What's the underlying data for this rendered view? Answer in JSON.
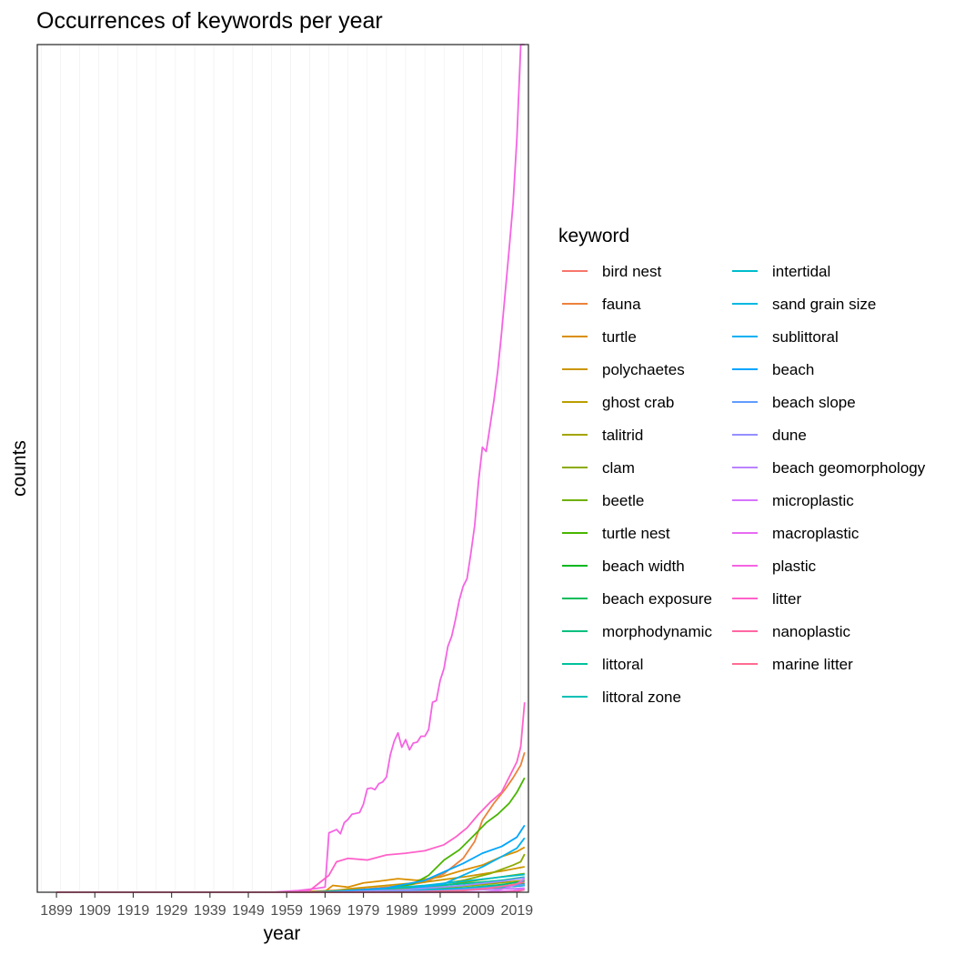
{
  "chart_data": {
    "type": "line",
    "title": "Occurrences of keywords per year",
    "xlabel": "year",
    "ylabel": "counts",
    "xlim": [
      1894,
      2022
    ],
    "ylim": [
      0,
      100
    ],
    "x_ticks": [
      1899,
      1909,
      1919,
      1929,
      1939,
      1949,
      1959,
      1969,
      1979,
      1989,
      1999,
      2009,
      2019
    ],
    "x_tick_labels": [
      "1899",
      "1909",
      "1919",
      "1929",
      "1939",
      "1949",
      "1959",
      "1969",
      "1979",
      "1989",
      "1999",
      "2009",
      "2019"
    ],
    "y_ticks_visible": false,
    "grid": "vertical",
    "legend": {
      "title": "keyword",
      "placement": "right",
      "columns": 2
    },
    "x_range": [
      1899,
      2021
    ],
    "series": [
      {
        "name": "bird nest",
        "color": "#F8766D",
        "points": [
          [
            1899,
            0
          ],
          [
            1969,
            0
          ],
          [
            1990,
            0.1
          ],
          [
            2000,
            0.2
          ],
          [
            2010,
            0.4
          ],
          [
            2021,
            0.8
          ]
        ]
      },
      {
        "name": "fauna",
        "color": "#EC823C",
        "points": [
          [
            1899,
            0
          ],
          [
            1960,
            0
          ],
          [
            1970,
            0.2
          ],
          [
            1980,
            0.4
          ],
          [
            1990,
            0.8
          ],
          [
            1995,
            1.2
          ],
          [
            2000,
            2.2
          ],
          [
            2005,
            4
          ],
          [
            2008,
            6
          ],
          [
            2010,
            8.5
          ],
          [
            2013,
            10.5
          ],
          [
            2016,
            12.2
          ],
          [
            2018,
            13.5
          ],
          [
            2020,
            15
          ],
          [
            2021,
            16.5
          ]
        ]
      },
      {
        "name": "turtle",
        "color": "#DA8F00",
        "points": [
          [
            1899,
            0
          ],
          [
            1960,
            0
          ],
          [
            1969,
            0.1
          ],
          [
            1971,
            0.8
          ],
          [
            1975,
            0.6
          ],
          [
            1979,
            1.1
          ],
          [
            1983,
            1.3
          ],
          [
            1988,
            1.6
          ],
          [
            1993,
            1.4
          ],
          [
            1999,
            1.8
          ],
          [
            2005,
            2.6
          ],
          [
            2010,
            3.2
          ],
          [
            2015,
            4.2
          ],
          [
            2019,
            4.8
          ],
          [
            2021,
            5.3
          ]
        ]
      },
      {
        "name": "polychaetes",
        "color": "#CC9600",
        "points": [
          [
            1899,
            0
          ],
          [
            1968,
            0
          ],
          [
            1975,
            0.4
          ],
          [
            1985,
            0.8
          ],
          [
            1995,
            1.2
          ],
          [
            2005,
            1.8
          ],
          [
            2015,
            2.5
          ],
          [
            2021,
            3
          ]
        ]
      },
      {
        "name": "ghost crab",
        "color": "#BA9E00",
        "points": [
          [
            1899,
            0
          ],
          [
            1980,
            0
          ],
          [
            1995,
            0.1
          ],
          [
            2005,
            0.3
          ],
          [
            2015,
            0.6
          ],
          [
            2021,
            0.9
          ]
        ]
      },
      {
        "name": "talitrid",
        "color": "#A3A500",
        "points": [
          [
            1899,
            0
          ],
          [
            1970,
            0
          ],
          [
            1985,
            0.2
          ],
          [
            2000,
            0.5
          ],
          [
            2010,
            0.9
          ],
          [
            2021,
            1.4
          ]
        ]
      },
      {
        "name": "clam",
        "color": "#8CAB00",
        "points": [
          [
            1899,
            0
          ],
          [
            1970,
            0
          ],
          [
            1985,
            0.3
          ],
          [
            1995,
            0.7
          ],
          [
            2005,
            1.4
          ],
          [
            2012,
            2.2
          ],
          [
            2018,
            3.2
          ],
          [
            2020,
            3.6
          ],
          [
            2021,
            4.5
          ]
        ]
      },
      {
        "name": "beetle",
        "color": "#6FB000",
        "points": [
          [
            1899,
            0
          ],
          [
            1975,
            0
          ],
          [
            1990,
            0.3
          ],
          [
            2000,
            0.8
          ],
          [
            2010,
            1.5
          ],
          [
            2021,
            2.2
          ]
        ]
      },
      {
        "name": "turtle nest",
        "color": "#49B500",
        "points": [
          [
            1899,
            0
          ],
          [
            1975,
            0
          ],
          [
            1985,
            0.3
          ],
          [
            1992,
            1
          ],
          [
            1996,
            2
          ],
          [
            2000,
            3.8
          ],
          [
            2004,
            5
          ],
          [
            2008,
            6.8
          ],
          [
            2011,
            8.2
          ],
          [
            2014,
            9.2
          ],
          [
            2017,
            10.5
          ],
          [
            2019,
            11.8
          ],
          [
            2021,
            13.5
          ]
        ]
      },
      {
        "name": "beach width",
        "color": "#00B81F",
        "points": [
          [
            1899,
            0
          ],
          [
            1980,
            0
          ],
          [
            2000,
            0.2
          ],
          [
            2010,
            0.5
          ],
          [
            2021,
            1
          ]
        ]
      },
      {
        "name": "beach exposure",
        "color": "#00BC59",
        "points": [
          [
            1899,
            0
          ],
          [
            1980,
            0
          ],
          [
            2000,
            0.2
          ],
          [
            2010,
            0.4
          ],
          [
            2021,
            0.8
          ]
        ]
      },
      {
        "name": "morphodynamic",
        "color": "#00BF7D",
        "points": [
          [
            1899,
            0
          ],
          [
            1980,
            0
          ],
          [
            1995,
            0.2
          ],
          [
            2005,
            0.5
          ],
          [
            2015,
            0.9
          ],
          [
            2021,
            1.3
          ]
        ]
      },
      {
        "name": "littoral",
        "color": "#00C19C",
        "points": [
          [
            1899,
            0
          ],
          [
            1965,
            0
          ],
          [
            1980,
            0.3
          ],
          [
            1995,
            0.7
          ],
          [
            2005,
            1
          ],
          [
            2015,
            1.4
          ],
          [
            2021,
            1.8
          ]
        ]
      },
      {
        "name": "littoral zone",
        "color": "#00C0B6",
        "points": [
          [
            1899,
            0
          ],
          [
            1970,
            0
          ],
          [
            1990,
            0.2
          ],
          [
            2005,
            0.5
          ],
          [
            2021,
            0.9
          ]
        ]
      },
      {
        "name": "intertidal",
        "color": "#00BDCC",
        "points": [
          [
            1899,
            0
          ],
          [
            1965,
            0
          ],
          [
            1980,
            0.3
          ],
          [
            1995,
            0.8
          ],
          [
            2005,
            1.3
          ],
          [
            2015,
            1.8
          ],
          [
            2021,
            2.1
          ]
        ]
      },
      {
        "name": "sand grain size",
        "color": "#00B8E0",
        "points": [
          [
            1899,
            0
          ],
          [
            1975,
            0
          ],
          [
            1995,
            0.2
          ],
          [
            2010,
            0.5
          ],
          [
            2021,
            0.8
          ]
        ]
      },
      {
        "name": "sublittoral",
        "color": "#00B0F3",
        "points": [
          [
            1899,
            0
          ],
          [
            1975,
            0
          ],
          [
            1990,
            0.3
          ],
          [
            2000,
            1
          ],
          [
            2005,
            2
          ],
          [
            2010,
            3
          ],
          [
            2015,
            4.2
          ],
          [
            2019,
            5.2
          ],
          [
            2021,
            6.4
          ]
        ]
      },
      {
        "name": "beach",
        "color": "#00A5FF",
        "points": [
          [
            1899,
            0
          ],
          [
            1970,
            0
          ],
          [
            1985,
            0.5
          ],
          [
            1995,
            1.4
          ],
          [
            2000,
            2.4
          ],
          [
            2005,
            3.4
          ],
          [
            2010,
            4.6
          ],
          [
            2015,
            5.4
          ],
          [
            2019,
            6.5
          ],
          [
            2021,
            7.9
          ]
        ]
      },
      {
        "name": "beach slope",
        "color": "#619CFF",
        "points": [
          [
            1899,
            0
          ],
          [
            1980,
            0
          ],
          [
            2000,
            0.2
          ],
          [
            2010,
            0.5
          ],
          [
            2021,
            0.9
          ]
        ]
      },
      {
        "name": "dune",
        "color": "#9590FF",
        "points": [
          [
            1899,
            0
          ],
          [
            1970,
            0
          ],
          [
            1990,
            0.3
          ],
          [
            2005,
            0.8
          ],
          [
            2015,
            1.3
          ],
          [
            2021,
            1.7
          ]
        ]
      },
      {
        "name": "beach geomorphology",
        "color": "#B983FF",
        "points": [
          [
            1899,
            0
          ],
          [
            1985,
            0
          ],
          [
            2005,
            0.2
          ],
          [
            2021,
            0.5
          ]
        ]
      },
      {
        "name": "microplastic",
        "color": "#D575FE",
        "points": [
          [
            1899,
            0
          ],
          [
            2010,
            0
          ],
          [
            2014,
            0.2
          ],
          [
            2017,
            0.6
          ],
          [
            2019,
            1
          ],
          [
            2021,
            1.6
          ]
        ]
      },
      {
        "name": "macroplastic",
        "color": "#E76BF3",
        "points": [
          [
            1899,
            0
          ],
          [
            2012,
            0
          ],
          [
            2018,
            0.2
          ],
          [
            2021,
            0.4
          ]
        ]
      },
      {
        "name": "plastic",
        "color": "#F564E3",
        "points": [
          [
            1899,
            0
          ],
          [
            1955,
            0
          ],
          [
            1962,
            0.2
          ],
          [
            1966,
            0.4
          ],
          [
            1969,
            0.6
          ],
          [
            1970,
            7
          ],
          [
            1971,
            7.2
          ],
          [
            1972,
            7.4
          ],
          [
            1973,
            6.9
          ],
          [
            1974,
            8.2
          ],
          [
            1975,
            8.6
          ],
          [
            1976,
            9.2
          ],
          [
            1977,
            9.3
          ],
          [
            1978,
            9.4
          ],
          [
            1979,
            10.4
          ],
          [
            1980,
            12.2
          ],
          [
            1981,
            12.3
          ],
          [
            1982,
            12.1
          ],
          [
            1983,
            12.8
          ],
          [
            1984,
            13
          ],
          [
            1985,
            13.6
          ],
          [
            1986,
            16.2
          ],
          [
            1987,
            17.8
          ],
          [
            1988,
            18.8
          ],
          [
            1989,
            17.1
          ],
          [
            1990,
            18
          ],
          [
            1991,
            16.8
          ],
          [
            1992,
            17.6
          ],
          [
            1993,
            17.7
          ],
          [
            1994,
            18.4
          ],
          [
            1995,
            18.4
          ],
          [
            1996,
            19.2
          ],
          [
            1997,
            22.4
          ],
          [
            1998,
            22.6
          ],
          [
            1999,
            25
          ],
          [
            2000,
            26.4
          ],
          [
            2001,
            29
          ],
          [
            2002,
            30.2
          ],
          [
            2003,
            32.2
          ],
          [
            2004,
            34.5
          ],
          [
            2005,
            36.1
          ],
          [
            2006,
            37
          ],
          [
            2007,
            40
          ],
          [
            2008,
            43.3
          ],
          [
            2009,
            48.5
          ],
          [
            2010,
            52.5
          ],
          [
            2011,
            52
          ],
          [
            2012,
            55
          ],
          [
            2013,
            58
          ],
          [
            2014,
            61.5
          ],
          [
            2015,
            66
          ],
          [
            2016,
            71
          ],
          [
            2017,
            76
          ],
          [
            2018,
            81.3
          ],
          [
            2019,
            89
          ],
          [
            2020,
            100
          ]
        ]
      },
      {
        "name": "litter",
        "color": "#FF61C9",
        "points": [
          [
            1899,
            0
          ],
          [
            1960,
            0
          ],
          [
            1965,
            0.2
          ],
          [
            1970,
            2
          ],
          [
            1972,
            3.6
          ],
          [
            1975,
            4
          ],
          [
            1980,
            3.8
          ],
          [
            1985,
            4.4
          ],
          [
            1990,
            4.6
          ],
          [
            1995,
            4.9
          ],
          [
            2000,
            5.6
          ],
          [
            2003,
            6.5
          ],
          [
            2006,
            7.6
          ],
          [
            2009,
            9.2
          ],
          [
            2012,
            10.6
          ],
          [
            2015,
            11.8
          ],
          [
            2017,
            13.6
          ],
          [
            2019,
            15.4
          ],
          [
            2020,
            17.2
          ],
          [
            2021,
            22.4
          ]
        ]
      },
      {
        "name": "nanoplastic",
        "color": "#FF67A4",
        "points": [
          [
            1899,
            0
          ],
          [
            2015,
            0
          ],
          [
            2019,
            0.1
          ],
          [
            2021,
            0.3
          ]
        ]
      },
      {
        "name": "marine litter",
        "color": "#FF6C91",
        "points": [
          [
            1899,
            0
          ],
          [
            1990,
            0
          ],
          [
            2005,
            0.2
          ],
          [
            2012,
            0.5
          ],
          [
            2018,
            0.9
          ],
          [
            2021,
            1.2
          ]
        ]
      }
    ]
  }
}
